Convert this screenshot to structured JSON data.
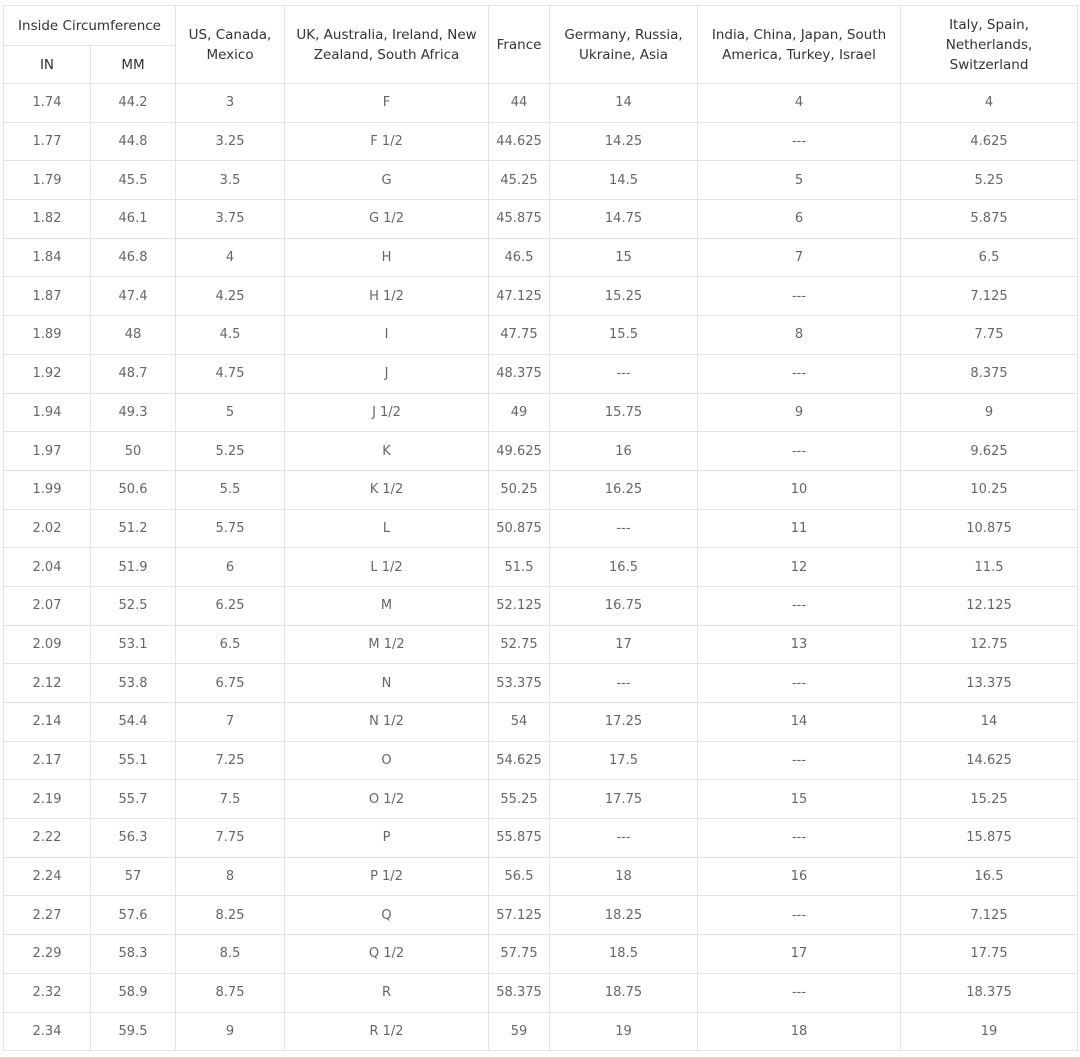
{
  "header": {
    "group": "Inside Circumference",
    "sub": [
      "IN",
      "MM"
    ],
    "columns": [
      "US, Canada, Mexico",
      "UK, Australia, Ireland, New Zealand, South Africa",
      "France",
      "Germany, Russia, Ukraine, Asia",
      "India, China, Japan, South America, Turkey, Israel",
      "Italy, Spain, Netherlands, Switzerland"
    ]
  },
  "table": {
    "rows": [
      [
        "1.74",
        "44.2",
        "3",
        "F",
        "44",
        "14",
        "4",
        "4"
      ],
      [
        "1.77",
        "44.8",
        "3.25",
        "F 1/2",
        "44.625",
        "14.25",
        "---",
        "4.625"
      ],
      [
        "1.79",
        "45.5",
        "3.5",
        "G",
        "45.25",
        "14.5",
        "5",
        "5.25"
      ],
      [
        "1.82",
        "46.1",
        "3.75",
        "G 1/2",
        "45.875",
        "14.75",
        "6",
        "5.875"
      ],
      [
        "1.84",
        "46.8",
        "4",
        "H",
        "46.5",
        "15",
        "7",
        "6.5"
      ],
      [
        "1.87",
        "47.4",
        "4.25",
        "H 1/2",
        "47.125",
        "15.25",
        "---",
        "7.125"
      ],
      [
        "1.89",
        "48",
        "4.5",
        "I",
        "47.75",
        "15.5",
        "8",
        "7.75"
      ],
      [
        "1.92",
        "48.7",
        "4.75",
        "J",
        "48.375",
        "---",
        "---",
        "8.375"
      ],
      [
        "1.94",
        "49.3",
        "5",
        "J 1/2",
        "49",
        "15.75",
        "9",
        "9"
      ],
      [
        "1.97",
        "50",
        "5.25",
        "K",
        "49.625",
        "16",
        "---",
        "9.625"
      ],
      [
        "1.99",
        "50.6",
        "5.5",
        "K 1/2",
        "50.25",
        "16.25",
        "10",
        "10.25"
      ],
      [
        "2.02",
        "51.2",
        "5.75",
        "L",
        "50.875",
        "---",
        "11",
        "10.875"
      ],
      [
        "2.04",
        "51.9",
        "6",
        "L 1/2",
        "51.5",
        "16.5",
        "12",
        "11.5"
      ],
      [
        "2.07",
        "52.5",
        "6.25",
        "M",
        "52.125",
        "16.75",
        "---",
        "12.125"
      ],
      [
        "2.09",
        "53.1",
        "6.5",
        "M 1/2",
        "52.75",
        "17",
        "13",
        "12.75"
      ],
      [
        "2.12",
        "53.8",
        "6.75",
        "N",
        "53.375",
        "---",
        "---",
        "13.375"
      ],
      [
        "2.14",
        "54.4",
        "7",
        "N 1/2",
        "54",
        "17.25",
        "14",
        "14"
      ],
      [
        "2.17",
        "55.1",
        "7.25",
        "O",
        "54.625",
        "17.5",
        "---",
        "14.625"
      ],
      [
        "2.19",
        "55.7",
        "7.5",
        "O 1/2",
        "55.25",
        "17.75",
        "15",
        "15.25"
      ],
      [
        "2.22",
        "56.3",
        "7.75",
        "P",
        "55.875",
        "---",
        "---",
        "15.875"
      ],
      [
        "2.24",
        "57",
        "8",
        "P 1/2",
        "56.5",
        "18",
        "16",
        "16.5"
      ],
      [
        "2.27",
        "57.6",
        "8.25",
        "Q",
        "57.125",
        "18.25",
        "---",
        "7.125"
      ],
      [
        "2.29",
        "58.3",
        "8.5",
        "Q 1/2",
        "57.75",
        "18.5",
        "17",
        "17.75"
      ],
      [
        "2.32",
        "58.9",
        "8.75",
        "R",
        "58.375",
        "18.75",
        "---",
        "18.375"
      ],
      [
        "2.34",
        "59.5",
        "9",
        "R 1/2",
        "59",
        "19",
        "18",
        "19"
      ]
    ]
  }
}
